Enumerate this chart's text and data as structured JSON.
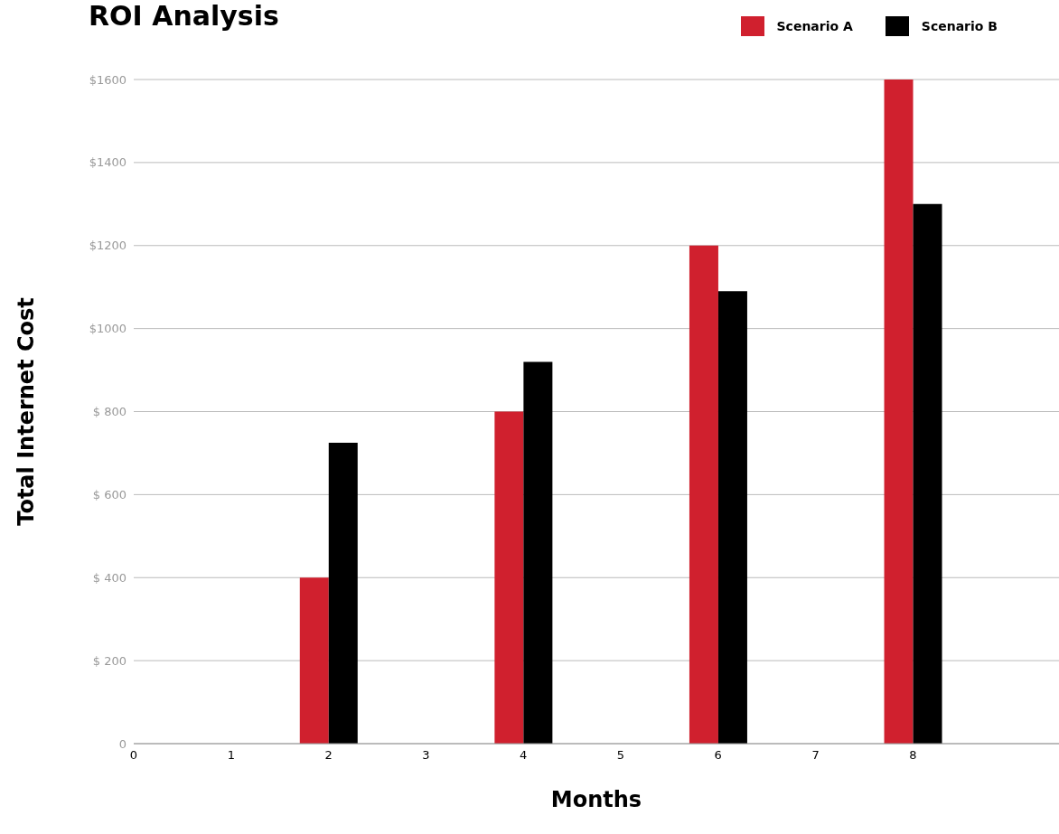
{
  "chart_data": {
    "type": "bar",
    "title": "ROI Analysis",
    "xlabel": "Months",
    "ylabel": "Total Internet Cost",
    "x": [
      2,
      4,
      6,
      8
    ],
    "series": [
      {
        "name": "Scenario A",
        "color": "#d0202e",
        "values": [
          400,
          800,
          1200,
          1600
        ]
      },
      {
        "name": "Scenario B",
        "color": "#000000",
        "values": [
          725,
          920,
          1090,
          1300
        ]
      }
    ],
    "xlim": [
      0,
      9.5
    ],
    "xticks": [
      0,
      1,
      2,
      3,
      4,
      5,
      6,
      7,
      8
    ],
    "ylim": [
      0,
      1600
    ],
    "yticks": [
      {
        "value": 0,
        "label": "0"
      },
      {
        "value": 200,
        "label": "$ 200"
      },
      {
        "value": 400,
        "label": "$ 400"
      },
      {
        "value": 600,
        "label": "$ 600"
      },
      {
        "value": 800,
        "label": "$ 800"
      },
      {
        "value": 1000,
        "label": "$1000"
      },
      {
        "value": 1200,
        "label": "$1200"
      },
      {
        "value": 1400,
        "label": "$1400"
      },
      {
        "value": 1600,
        "label": "$1600"
      }
    ],
    "grid": "y",
    "legend": "top right"
  }
}
